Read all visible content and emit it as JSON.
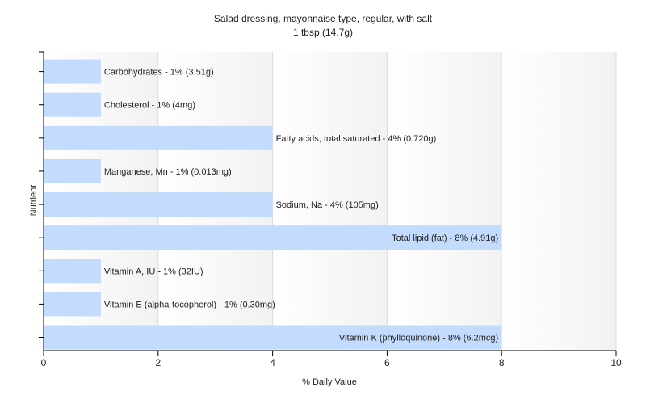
{
  "chart_data": {
    "type": "bar",
    "orientation": "horizontal",
    "title": "Salad dressing, mayonnaise type, regular, with salt",
    "subtitle": "1 tbsp (14.7g)",
    "xlabel": "% Daily Value",
    "ylabel": "Nutrient",
    "xlim": [
      0,
      10
    ],
    "xticks": [
      0,
      2,
      4,
      6,
      8,
      10
    ],
    "grid": "vertical",
    "bar_color": "#c3dcfd",
    "categories": [
      "Carbohydrates",
      "Cholesterol",
      "Fatty acids, total saturated",
      "Manganese, Mn",
      "Sodium, Na",
      "Total lipid (fat)",
      "Vitamin A, IU",
      "Vitamin E (alpha-tocopherol)",
      "Vitamin K (phylloquinone)"
    ],
    "values": [
      1,
      1,
      4,
      1,
      4,
      8,
      1,
      1,
      8
    ],
    "labels": [
      "Carbohydrates - 1% (3.51g)",
      "Cholesterol - 1% (4mg)",
      "Fatty acids, total saturated - 4% (0.720g)",
      "Manganese, Mn - 1% (0.013mg)",
      "Sodium, Na - 4% (105mg)",
      "Total lipid (fat) - 8% (4.91g)",
      "Vitamin A, IU - 1% (32IU)",
      "Vitamin E (alpha-tocopherol) - 1% (0.30mg)",
      "Vitamin K (phylloquinone) - 8% (6.2mcg)"
    ]
  }
}
